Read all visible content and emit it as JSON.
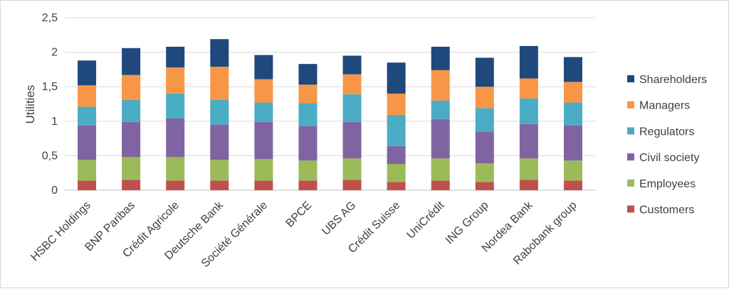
{
  "chart_data": {
    "type": "bar",
    "stacked": true,
    "title": "",
    "xlabel": "",
    "ylabel": "Utilities",
    "ylim": [
      0,
      2.5
    ],
    "yticks": [
      "0",
      "0,5",
      "1",
      "1,5",
      "2",
      "2,5"
    ],
    "grid": true,
    "legend_position": "right",
    "categories": [
      "HSBC Holdings",
      "BNP Paribas",
      "Crédit Agricole",
      "Deutsche Bank",
      "Société Générale",
      "BPCE",
      "UBS AG",
      "Crédit Suisse",
      "UniCrédit",
      "ING Group",
      "Nordea Bank",
      "Rabobank group"
    ],
    "series": [
      {
        "name": "Customers",
        "color": "#c0504d",
        "values": [
          0.14,
          0.15,
          0.14,
          0.14,
          0.14,
          0.14,
          0.15,
          0.12,
          0.14,
          0.12,
          0.15,
          0.14
        ]
      },
      {
        "name": "Employees",
        "color": "#9bbb59",
        "values": [
          0.3,
          0.33,
          0.34,
          0.3,
          0.31,
          0.29,
          0.31,
          0.26,
          0.32,
          0.27,
          0.31,
          0.29
        ]
      },
      {
        "name": "Civil society",
        "color": "#8064a2",
        "values": [
          0.5,
          0.51,
          0.56,
          0.51,
          0.54,
          0.5,
          0.53,
          0.26,
          0.57,
          0.46,
          0.5,
          0.51
        ]
      },
      {
        "name": "Regulators",
        "color": "#4bacc6",
        "values": [
          0.27,
          0.32,
          0.36,
          0.36,
          0.28,
          0.33,
          0.4,
          0.45,
          0.27,
          0.34,
          0.37,
          0.33
        ]
      },
      {
        "name": "Managers",
        "color": "#f79646",
        "values": [
          0.31,
          0.36,
          0.38,
          0.48,
          0.34,
          0.27,
          0.29,
          0.31,
          0.44,
          0.31,
          0.29,
          0.3
        ]
      },
      {
        "name": "Shareholders",
        "color": "#1f497d",
        "values": [
          0.36,
          0.39,
          0.3,
          0.4,
          0.35,
          0.3,
          0.27,
          0.45,
          0.34,
          0.42,
          0.47,
          0.36
        ]
      }
    ],
    "legend_order": [
      "Shareholders",
      "Managers",
      "Regulators",
      "Civil society",
      "Employees",
      "Customers"
    ]
  }
}
